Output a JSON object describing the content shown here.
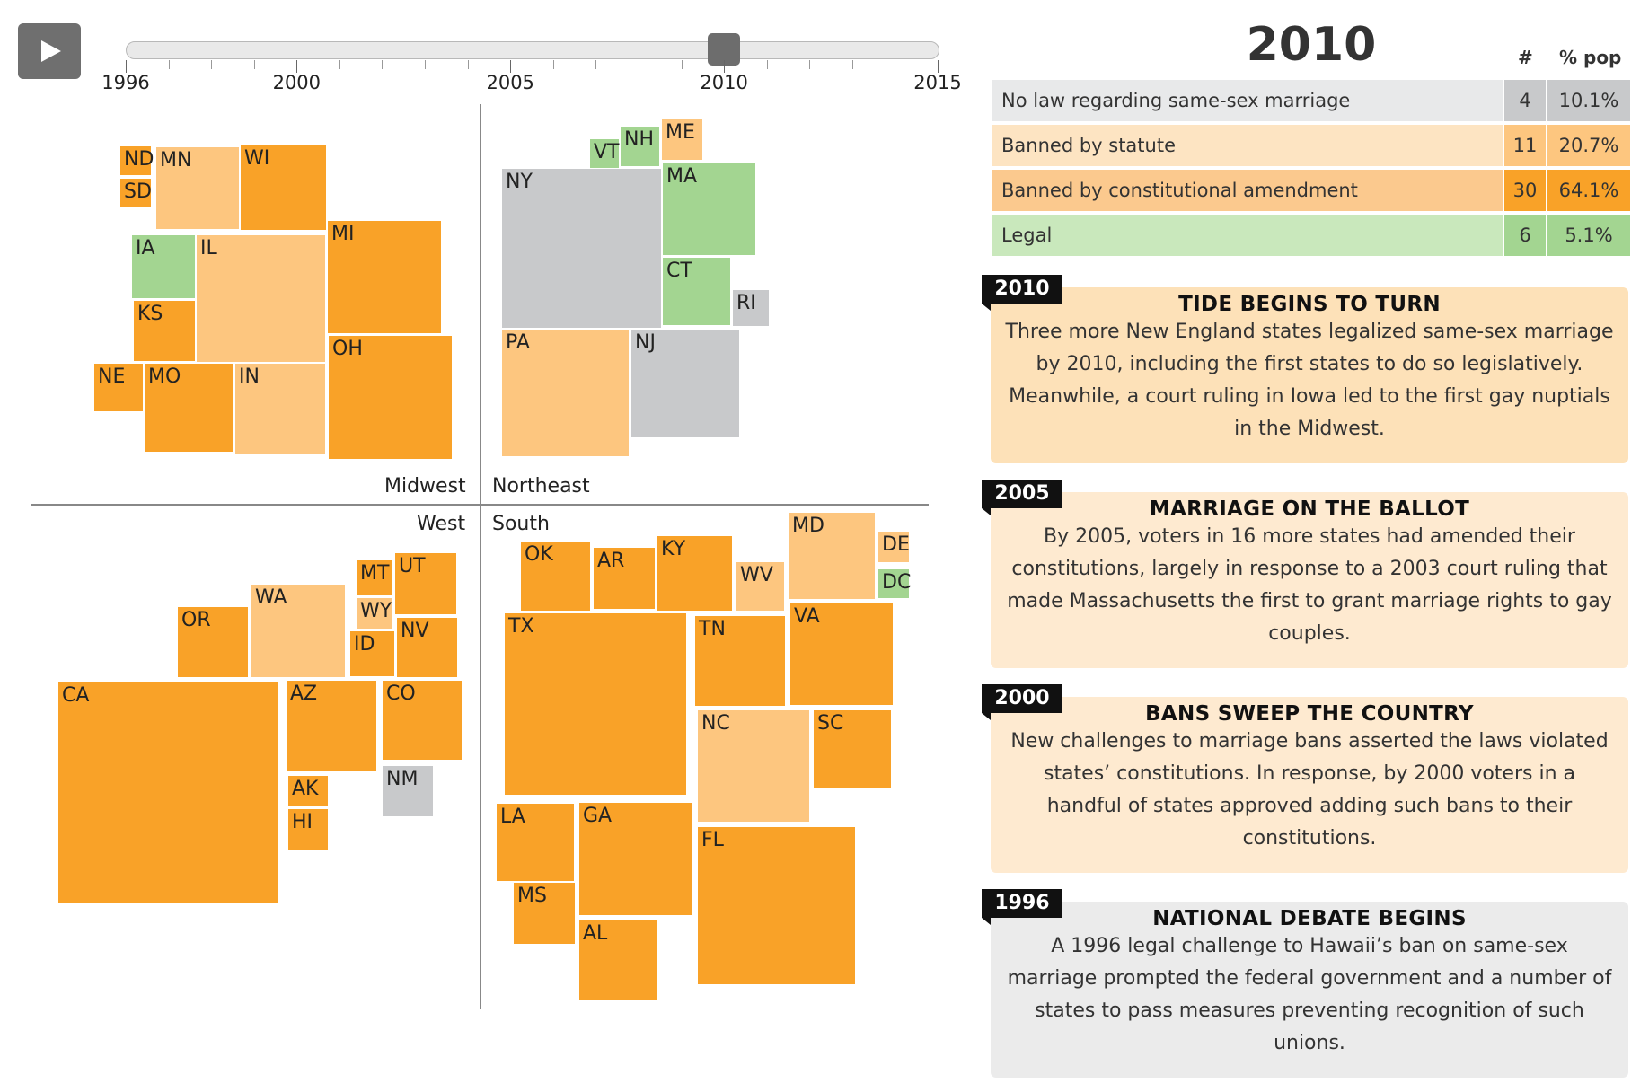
{
  "controls": {
    "play_icon": "play-icon",
    "timeline": {
      "min_year": 1996,
      "max_year": 2015,
      "current_year": 2010,
      "labels": [
        "1996",
        "2000",
        "2005",
        "2010",
        "2015"
      ]
    }
  },
  "colors": {
    "none": "#c8c9cb",
    "statute": "#fdc67f",
    "amendment": "#f9a228",
    "legal": "#a3d591"
  },
  "regions": {
    "midwest": "Midwest",
    "northeast": "Northeast",
    "west": "West",
    "south": "South"
  },
  "states": [
    {
      "abbr": "ND",
      "status": "amendment"
    },
    {
      "abbr": "SD",
      "status": "amendment"
    },
    {
      "abbr": "MN",
      "status": "statute"
    },
    {
      "abbr": "WI",
      "status": "amendment"
    },
    {
      "abbr": "IA",
      "status": "legal"
    },
    {
      "abbr": "IL",
      "status": "statute"
    },
    {
      "abbr": "MI",
      "status": "amendment"
    },
    {
      "abbr": "KS",
      "status": "amendment"
    },
    {
      "abbr": "NE",
      "status": "amendment"
    },
    {
      "abbr": "MO",
      "status": "amendment"
    },
    {
      "abbr": "IN",
      "status": "statute"
    },
    {
      "abbr": "OH",
      "status": "amendment"
    },
    {
      "abbr": "VT",
      "status": "legal"
    },
    {
      "abbr": "NH",
      "status": "legal"
    },
    {
      "abbr": "ME",
      "status": "statute"
    },
    {
      "abbr": "NY",
      "status": "none"
    },
    {
      "abbr": "MA",
      "status": "legal"
    },
    {
      "abbr": "CT",
      "status": "legal"
    },
    {
      "abbr": "RI",
      "status": "none"
    },
    {
      "abbr": "PA",
      "status": "statute"
    },
    {
      "abbr": "NJ",
      "status": "none"
    },
    {
      "abbr": "MT",
      "status": "amendment"
    },
    {
      "abbr": "UT",
      "status": "amendment"
    },
    {
      "abbr": "WA",
      "status": "statute"
    },
    {
      "abbr": "WY",
      "status": "statute"
    },
    {
      "abbr": "OR",
      "status": "amendment"
    },
    {
      "abbr": "ID",
      "status": "amendment"
    },
    {
      "abbr": "NV",
      "status": "amendment"
    },
    {
      "abbr": "CA",
      "status": "amendment"
    },
    {
      "abbr": "AZ",
      "status": "amendment"
    },
    {
      "abbr": "CO",
      "status": "amendment"
    },
    {
      "abbr": "NM",
      "status": "none"
    },
    {
      "abbr": "AK",
      "status": "amendment"
    },
    {
      "abbr": "HI",
      "status": "amendment"
    },
    {
      "abbr": "OK",
      "status": "amendment"
    },
    {
      "abbr": "AR",
      "status": "amendment"
    },
    {
      "abbr": "KY",
      "status": "amendment"
    },
    {
      "abbr": "WV",
      "status": "statute"
    },
    {
      "abbr": "MD",
      "status": "statute"
    },
    {
      "abbr": "DE",
      "status": "statute"
    },
    {
      "abbr": "DC",
      "status": "legal"
    },
    {
      "abbr": "TX",
      "status": "amendment"
    },
    {
      "abbr": "TN",
      "status": "amendment"
    },
    {
      "abbr": "VA",
      "status": "amendment"
    },
    {
      "abbr": "NC",
      "status": "statute"
    },
    {
      "abbr": "SC",
      "status": "amendment"
    },
    {
      "abbr": "LA",
      "status": "amendment"
    },
    {
      "abbr": "GA",
      "status": "amendment"
    },
    {
      "abbr": "MS",
      "status": "amendment"
    },
    {
      "abbr": "FL",
      "status": "amendment"
    },
    {
      "abbr": "AL",
      "status": "amendment"
    }
  ],
  "summary": {
    "year": "2010",
    "col_count": "#",
    "col_pct": "% pop",
    "rows": [
      {
        "label": "No law regarding same-sex marriage",
        "count": "4",
        "pct": "10.1%"
      },
      {
        "label": "Banned by statute",
        "count": "11",
        "pct": "20.7%"
      },
      {
        "label": "Banned by constitutional amendment",
        "count": "30",
        "pct": "64.1%"
      },
      {
        "label": "Legal",
        "count": "6",
        "pct": "5.1%"
      }
    ]
  },
  "timeline_cards": [
    {
      "year": "2010",
      "title": "TIDE BEGINS TO TURN",
      "body": "Three more New England states legalized same-sex marriage by 2010, including the first states to do so legislatively. Meanwhile, a court ruling in Iowa led to the first gay nuptials in the Midwest."
    },
    {
      "year": "2005",
      "title": "MARRIAGE ON THE BALLOT",
      "body": "By 2005, voters in 16 more states had amended their constitutions, largely in response to a 2003 court ruling that made Massachusetts the first to grant marriage rights to gay couples."
    },
    {
      "year": "2000",
      "title": "BANS SWEEP THE COUNTRY",
      "body": "New challenges to marriage bans asserted the laws violated states’ constitutions. In response, by 2000 voters in a handful of states approved adding such bans to their constitutions."
    },
    {
      "year": "1996",
      "title": "NATIONAL DEBATE BEGINS",
      "body": "A 1996 legal challenge to Hawaii’s ban on same-sex marriage prompted the federal government and a number of states to pass measures preventing recognition of such unions."
    }
  ]
}
